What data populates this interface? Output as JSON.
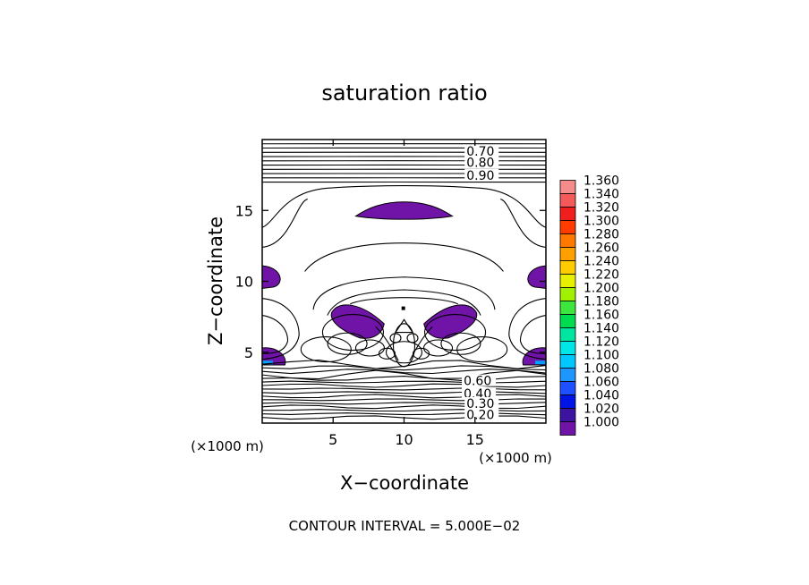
{
  "chart_data": {
    "type": "contour",
    "title": "saturation ratio",
    "xlabel": "X−coordinate",
    "ylabel": "Z−coordinate",
    "x_unit_label": "(×1000 m)",
    "y_unit_label": "(×1000 m)",
    "xlim": [
      0,
      20
    ],
    "ylim": [
      0,
      20
    ],
    "x_ticks": [
      "5",
      "10",
      "15"
    ],
    "x_tick_values": [
      5,
      10,
      15
    ],
    "y_ticks": [
      "5",
      "10",
      "15"
    ],
    "y_tick_values": [
      5,
      10,
      15
    ],
    "footer": "CONTOUR INTERVAL = 5.000E−02",
    "contour_labels": [
      {
        "text": "0.70",
        "x": 14.4,
        "z": 19.0
      },
      {
        "text": "0.80",
        "x": 14.4,
        "z": 18.2
      },
      {
        "text": "0.90",
        "x": 14.4,
        "z": 17.3
      },
      {
        "text": "0.60",
        "x": 14.2,
        "z": 2.8
      },
      {
        "text": "0.40",
        "x": 14.2,
        "z": 1.9
      },
      {
        "text": "0.30",
        "x": 14.4,
        "z": 1.2
      },
      {
        "text": "0.20",
        "x": 14.4,
        "z": 0.4
      }
    ],
    "colorbar": {
      "levels": [
        "1.360",
        "1.340",
        "1.320",
        "1.300",
        "1.280",
        "1.260",
        "1.240",
        "1.220",
        "1.200",
        "1.180",
        "1.160",
        "1.140",
        "1.120",
        "1.100",
        "1.080",
        "1.060",
        "1.040",
        "1.020",
        "1.000"
      ],
      "colors": [
        "#f58c8c",
        "#f55a5a",
        "#f01e1e",
        "#ff3c00",
        "#ff7800",
        "#ffa000",
        "#ffcc00",
        "#e6f000",
        "#a0f000",
        "#3ce63c",
        "#00dc50",
        "#00e6a0",
        "#00e6e6",
        "#00c8ff",
        "#1e96ff",
        "#1e50ff",
        "#0014e6",
        "#3c14a0",
        "#7014a8"
      ]
    },
    "filled_region_color": "#7014a8",
    "grid": false
  }
}
